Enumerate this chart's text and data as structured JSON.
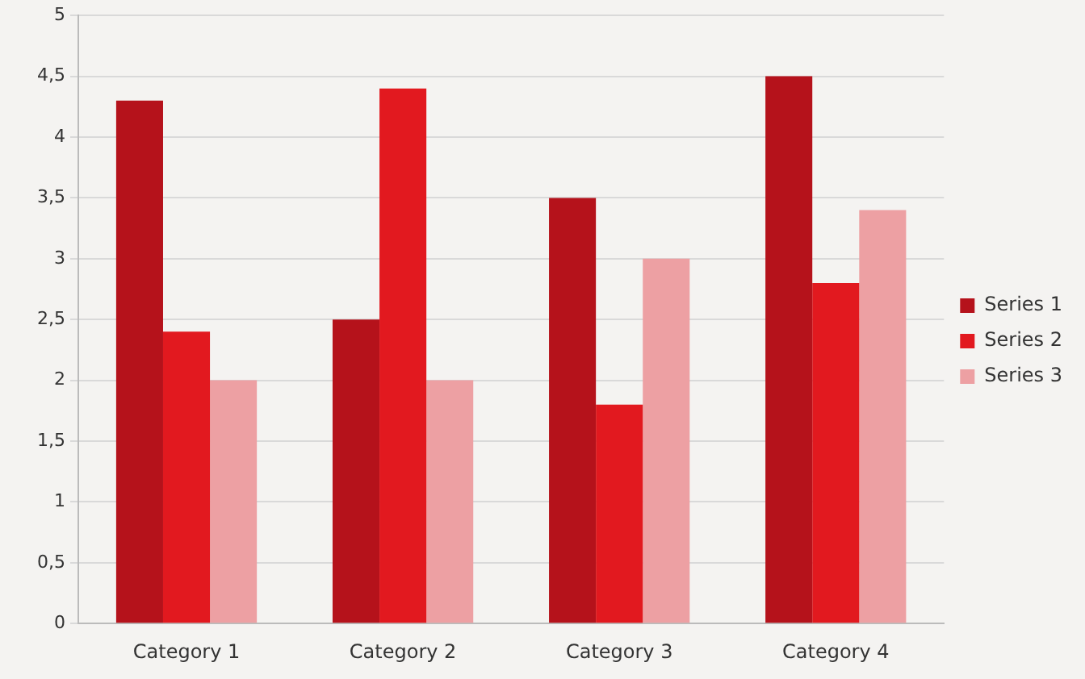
{
  "chart_data": {
    "type": "bar",
    "categories": [
      "Category 1",
      "Category 2",
      "Category 3",
      "Category 4"
    ],
    "series": [
      {
        "name": "Series 1",
        "color": "#b5121b",
        "values": [
          4.3,
          2.5,
          3.5,
          4.5
        ]
      },
      {
        "name": "Series 2",
        "color": "#e2191f",
        "values": [
          2.4,
          4.4,
          1.8,
          2.8
        ]
      },
      {
        "name": "Series 3",
        "color": "#eda0a3",
        "values": [
          2,
          2,
          3,
          3.4
        ]
      }
    ],
    "ylim": [
      0,
      5
    ],
    "yticks": [
      0,
      {
        "value": 0.5,
        "label": "0,5"
      },
      1,
      {
        "value": 1.5,
        "label": "1,5"
      },
      2,
      {
        "value": 2.5,
        "label": "2,5"
      },
      3,
      {
        "value": 3.5,
        "label": "3,5"
      },
      4,
      {
        "value": 4.5,
        "label": "4,5"
      },
      5
    ],
    "grid": "y",
    "legend": "right"
  }
}
